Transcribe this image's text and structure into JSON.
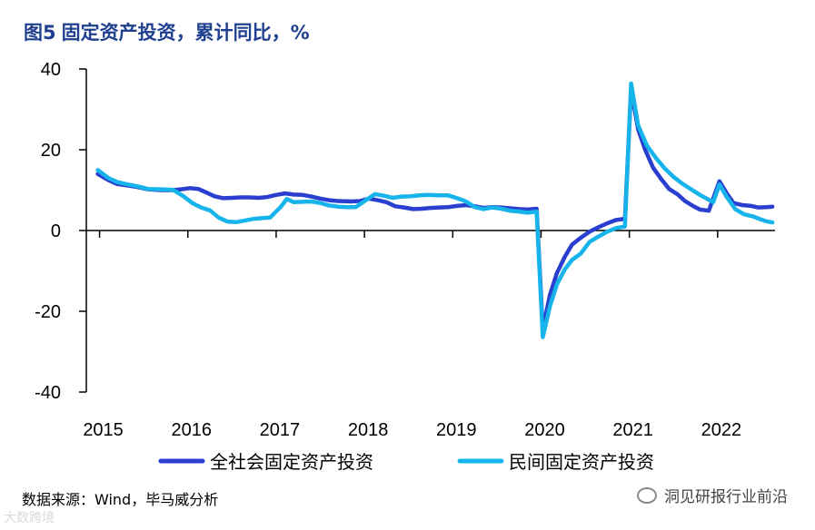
{
  "figure": {
    "label": "图5",
    "title": "固定资产投资，累计同比，%",
    "source": "数据来源：Wind，毕马威分析",
    "watermark": "洞见研报行业前沿",
    "watermark_bottom": "大数跨境"
  },
  "colors": {
    "series1": "#2a3fd0",
    "series2": "#16b4ea",
    "title": "#1f3f8f"
  },
  "chart_data": {
    "type": "line",
    "title": "固定资产投资，累计同比，%",
    "xlabel": "",
    "ylabel": "",
    "ylim": [
      -40,
      40
    ],
    "yticks": [
      40,
      20,
      0,
      -20,
      -40
    ],
    "ytick_labels": [
      "40",
      "20",
      "0",
      "-20",
      "-40"
    ],
    "xlim": [
      2014.85,
      2022.65
    ],
    "xticks": [
      2015,
      2016,
      2017,
      2018,
      2019,
      2020,
      2021,
      2022
    ],
    "xtick_labels": [
      "2015",
      "2016",
      "2017",
      "2018",
      "2019",
      "2020",
      "2021",
      "2022"
    ],
    "legend_position": "bottom",
    "series": [
      {
        "name": "全社会固定资产投资",
        "points": [
          [
            2014.98,
            14
          ],
          [
            2015.1,
            12.5
          ],
          [
            2015.2,
            11.5
          ],
          [
            2015.3,
            11.2
          ],
          [
            2015.42,
            10.8
          ],
          [
            2015.55,
            10.2
          ],
          [
            2015.7,
            10
          ],
          [
            2015.83,
            10
          ],
          [
            2015.92,
            10.2
          ],
          [
            2016.02,
            10.5
          ],
          [
            2016.12,
            10.3
          ],
          [
            2016.2,
            9.5
          ],
          [
            2016.3,
            8.5
          ],
          [
            2016.4,
            8
          ],
          [
            2016.5,
            8.1
          ],
          [
            2016.6,
            8.2
          ],
          [
            2016.7,
            8.2
          ],
          [
            2016.8,
            8.1
          ],
          [
            2016.9,
            8.3
          ],
          [
            2017,
            8.8
          ],
          [
            2017.1,
            9.2
          ],
          [
            2017.2,
            8.9
          ],
          [
            2017.3,
            8.8
          ],
          [
            2017.4,
            8.4
          ],
          [
            2017.5,
            7.9
          ],
          [
            2017.6,
            7.5
          ],
          [
            2017.7,
            7.3
          ],
          [
            2017.85,
            7.2
          ],
          [
            2017.95,
            7.3
          ],
          [
            2018.05,
            7.9
          ],
          [
            2018.15,
            7.5
          ],
          [
            2018.25,
            7
          ],
          [
            2018.35,
            6
          ],
          [
            2018.45,
            5.7
          ],
          [
            2018.55,
            5.3
          ],
          [
            2018.65,
            5.4
          ],
          [
            2018.75,
            5.6
          ],
          [
            2018.85,
            5.7
          ],
          [
            2018.95,
            5.8
          ],
          [
            2019.05,
            6.1
          ],
          [
            2019.15,
            6.3
          ],
          [
            2019.25,
            6
          ],
          [
            2019.35,
            5.6
          ],
          [
            2019.45,
            5.8
          ],
          [
            2019.55,
            5.7
          ],
          [
            2019.65,
            5.5
          ],
          [
            2019.75,
            5.3
          ],
          [
            2019.85,
            5.2
          ],
          [
            2019.95,
            5.4
          ],
          [
            2020.02,
            -24.5
          ],
          [
            2020.1,
            -16
          ],
          [
            2020.18,
            -10.5
          ],
          [
            2020.27,
            -6.5
          ],
          [
            2020.35,
            -3.5
          ],
          [
            2020.45,
            -1.8
          ],
          [
            2020.55,
            -0.3
          ],
          [
            2020.65,
            0.8
          ],
          [
            2020.75,
            1.8
          ],
          [
            2020.85,
            2.6
          ],
          [
            2020.95,
            2.9
          ],
          [
            2021.02,
            35
          ],
          [
            2021.1,
            25
          ],
          [
            2021.18,
            20
          ],
          [
            2021.27,
            15.5
          ],
          [
            2021.37,
            12.5
          ],
          [
            2021.45,
            10.3
          ],
          [
            2021.55,
            8.9
          ],
          [
            2021.63,
            7.3
          ],
          [
            2021.72,
            6.1
          ],
          [
            2021.8,
            5.2
          ],
          [
            2021.9,
            4.9
          ],
          [
            2022.02,
            12.2
          ],
          [
            2022.1,
            9.3
          ],
          [
            2022.18,
            6.8
          ],
          [
            2022.28,
            6.3
          ],
          [
            2022.38,
            6.1
          ],
          [
            2022.46,
            5.7
          ],
          [
            2022.55,
            5.8
          ],
          [
            2022.62,
            5.9
          ]
        ]
      },
      {
        "name": "民间固定资产投资",
        "points": [
          [
            2014.98,
            15
          ],
          [
            2015.1,
            13
          ],
          [
            2015.2,
            12
          ],
          [
            2015.3,
            11.5
          ],
          [
            2015.42,
            11
          ],
          [
            2015.55,
            10.3
          ],
          [
            2015.7,
            10.2
          ],
          [
            2015.83,
            10.1
          ],
          [
            2015.95,
            8.5
          ],
          [
            2016.05,
            6.8
          ],
          [
            2016.15,
            5.7
          ],
          [
            2016.25,
            5
          ],
          [
            2016.35,
            3.2
          ],
          [
            2016.45,
            2.2
          ],
          [
            2016.55,
            2.1
          ],
          [
            2016.65,
            2.5
          ],
          [
            2016.75,
            2.9
          ],
          [
            2016.85,
            3.1
          ],
          [
            2016.93,
            3.2
          ],
          [
            2017.05,
            5.8
          ],
          [
            2017.12,
            7.8
          ],
          [
            2017.2,
            7
          ],
          [
            2017.3,
            7.1
          ],
          [
            2017.4,
            7.2
          ],
          [
            2017.5,
            6.8
          ],
          [
            2017.6,
            6.2
          ],
          [
            2017.7,
            5.9
          ],
          [
            2017.8,
            5.8
          ],
          [
            2017.9,
            5.8
          ],
          [
            2018.05,
            8
          ],
          [
            2018.12,
            9
          ],
          [
            2018.22,
            8.6
          ],
          [
            2018.32,
            8.1
          ],
          [
            2018.42,
            8.4
          ],
          [
            2018.52,
            8.5
          ],
          [
            2018.62,
            8.7
          ],
          [
            2018.72,
            8.8
          ],
          [
            2018.85,
            8.7
          ],
          [
            2018.95,
            8.7
          ],
          [
            2019.05,
            8
          ],
          [
            2019.15,
            7.2
          ],
          [
            2019.25,
            5.8
          ],
          [
            2019.35,
            5.3
          ],
          [
            2019.45,
            5.7
          ],
          [
            2019.55,
            5.4
          ],
          [
            2019.65,
            4.9
          ],
          [
            2019.75,
            4.7
          ],
          [
            2019.85,
            4.4
          ],
          [
            2019.95,
            4.7
          ],
          [
            2020.02,
            -26.4
          ],
          [
            2020.1,
            -18.8
          ],
          [
            2020.18,
            -13.3
          ],
          [
            2020.27,
            -9.6
          ],
          [
            2020.35,
            -7.3
          ],
          [
            2020.45,
            -5.7
          ],
          [
            2020.55,
            -2.8
          ],
          [
            2020.65,
            -1.5
          ],
          [
            2020.75,
            -0.3
          ],
          [
            2020.85,
            0.6
          ],
          [
            2020.95,
            1
          ],
          [
            2021.02,
            36.4
          ],
          [
            2021.1,
            26
          ],
          [
            2021.2,
            21
          ],
          [
            2021.3,
            18
          ],
          [
            2021.4,
            15.4
          ],
          [
            2021.5,
            13.3
          ],
          [
            2021.6,
            11.6
          ],
          [
            2021.7,
            10.2
          ],
          [
            2021.8,
            8.8
          ],
          [
            2021.95,
            7
          ],
          [
            2022.02,
            11.4
          ],
          [
            2022.1,
            8.4
          ],
          [
            2022.2,
            5.3
          ],
          [
            2022.3,
            4
          ],
          [
            2022.4,
            3.5
          ],
          [
            2022.48,
            2.8
          ],
          [
            2022.55,
            2.3
          ],
          [
            2022.62,
            2
          ]
        ]
      }
    ]
  }
}
